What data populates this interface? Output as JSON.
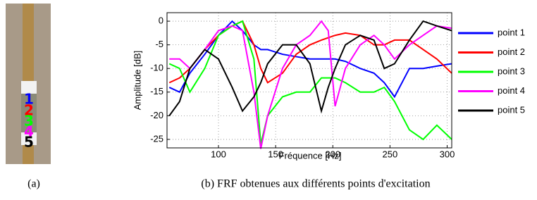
{
  "figure": {
    "panel_a_labels": [
      "1",
      "2",
      "3",
      "4",
      "5"
    ],
    "caption_a": "(a)",
    "caption_b": "(b) FRF obtenues aux différents points d'excitation"
  },
  "chart_data": {
    "type": "line",
    "xlabel": "Fréquence [Hz]",
    "ylabel": "Amplitude [dB]",
    "x": [
      57,
      66,
      75,
      88,
      100,
      112,
      121,
      131,
      137,
      143,
      156,
      168,
      180,
      190,
      196,
      202,
      211,
      224,
      236,
      245,
      254,
      267,
      279,
      291,
      304
    ],
    "series": [
      {
        "name": "point 1",
        "color": "#0000ff",
        "values": [
          -14,
          -15,
          -11,
          -7,
          -3,
          0,
          -2,
          -5,
          -6,
          -6,
          -7,
          -7.5,
          -8,
          -8,
          -8,
          -8,
          -8.5,
          -10,
          -11,
          -13,
          -16,
          -10,
          -10,
          -9.5,
          -9
        ]
      },
      {
        "name": "point 2",
        "color": "#ff0000",
        "values": [
          -13,
          -12,
          -10,
          -6,
          -3,
          -1,
          0,
          -5,
          -10,
          -13,
          -11,
          -7,
          -5,
          -4,
          -3.5,
          -3,
          -2.5,
          -3,
          -5,
          -5,
          -4,
          -4,
          -6,
          -8,
          -11
        ]
      },
      {
        "name": "point 3",
        "color": "#00ff00",
        "values": [
          -9,
          -10,
          -15,
          -10,
          -3,
          -1,
          0,
          -8,
          -26,
          -20,
          -16,
          -15,
          -15,
          -12,
          -12,
          -12,
          -13,
          -15,
          -15,
          -14,
          -17,
          -23,
          -25,
          -22,
          -25
        ]
      },
      {
        "name": "point 4",
        "color": "#ff00ff",
        "values": [
          -8,
          -8,
          -10,
          -6,
          -2,
          -1,
          -2,
          -15,
          -27,
          -20,
          -10,
          -5,
          -3,
          0,
          -2,
          -18,
          -10,
          -5,
          -3,
          -5,
          -8,
          -5,
          -3,
          -1,
          -1.5
        ]
      },
      {
        "name": "point 5",
        "color": "#000000",
        "values": [
          -20,
          -17,
          -10,
          -6,
          -8,
          -14,
          -19,
          -16,
          -13,
          -9,
          -5,
          -5,
          -9,
          -19,
          -14,
          -10,
          -5,
          -3,
          -4,
          -10,
          -9,
          -4,
          0,
          -1,
          -2
        ]
      }
    ],
    "xlim": [
      55,
      304
    ],
    "ylim": [
      -26.8,
      1.8
    ],
    "xticks": [
      100,
      150,
      200,
      250,
      300
    ],
    "yticks": [
      0,
      -5,
      -10,
      -15,
      -20,
      -25
    ],
    "grid": true,
    "legend": "right"
  }
}
